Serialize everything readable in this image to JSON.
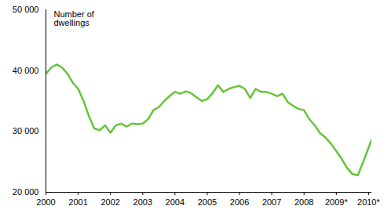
{
  "chart_data": {
    "type": "line",
    "y_label": "Number of dwellings",
    "x": [
      2000,
      2000.167,
      2000.333,
      2000.5,
      2000.667,
      2000.833,
      2001,
      2001.167,
      2001.333,
      2001.5,
      2001.667,
      2001.833,
      2002,
      2002.167,
      2002.333,
      2002.5,
      2002.667,
      2002.833,
      2003,
      2003.167,
      2003.333,
      2003.5,
      2003.667,
      2003.833,
      2004,
      2004.167,
      2004.333,
      2004.5,
      2004.667,
      2004.833,
      2005,
      2005.167,
      2005.333,
      2005.5,
      2005.667,
      2005.833,
      2006,
      2006.167,
      2006.333,
      2006.5,
      2006.667,
      2006.833,
      2007,
      2007.167,
      2007.333,
      2007.5,
      2007.667,
      2007.833,
      2008,
      2008.167,
      2008.333,
      2008.5,
      2008.667,
      2008.833,
      2009,
      2009.167,
      2009.333,
      2009.5,
      2009.667,
      2009.833,
      2010,
      2010.1
    ],
    "values": [
      39500,
      40500,
      41000,
      40500,
      39500,
      38000,
      37000,
      35000,
      32500,
      30500,
      30200,
      31000,
      29800,
      31000,
      31300,
      30800,
      31300,
      31200,
      31300,
      32000,
      33500,
      34000,
      35000,
      35800,
      36500,
      36200,
      36600,
      36300,
      35600,
      35000,
      35300,
      36300,
      37600,
      36500,
      37000,
      37300,
      37500,
      37000,
      35500,
      37000,
      36500,
      36500,
      36200,
      35800,
      36200,
      34800,
      34200,
      33700,
      33500,
      32000,
      31000,
      29700,
      29000,
      28000,
      26800,
      25500,
      24000,
      23000,
      22800,
      25000,
      27300,
      28700
    ],
    "color": "#66c43a",
    "xlim": [
      2000,
      2010.1
    ],
    "xticks": [
      2000,
      2001,
      2002,
      2003,
      2004,
      2005,
      2006,
      2007,
      2008,
      {
        "value": 2009,
        "label": "2009*"
      },
      {
        "value": 2010,
        "label": "2010*"
      }
    ],
    "ylim": [
      20000,
      50000
    ],
    "yticks": [
      {
        "value": 20000,
        "label": "20 000"
      },
      {
        "value": 30000,
        "label": "30 000"
      },
      {
        "value": 40000,
        "label": "40 000"
      },
      {
        "value": 50000,
        "label": "50 000"
      }
    ],
    "grid": false
  }
}
